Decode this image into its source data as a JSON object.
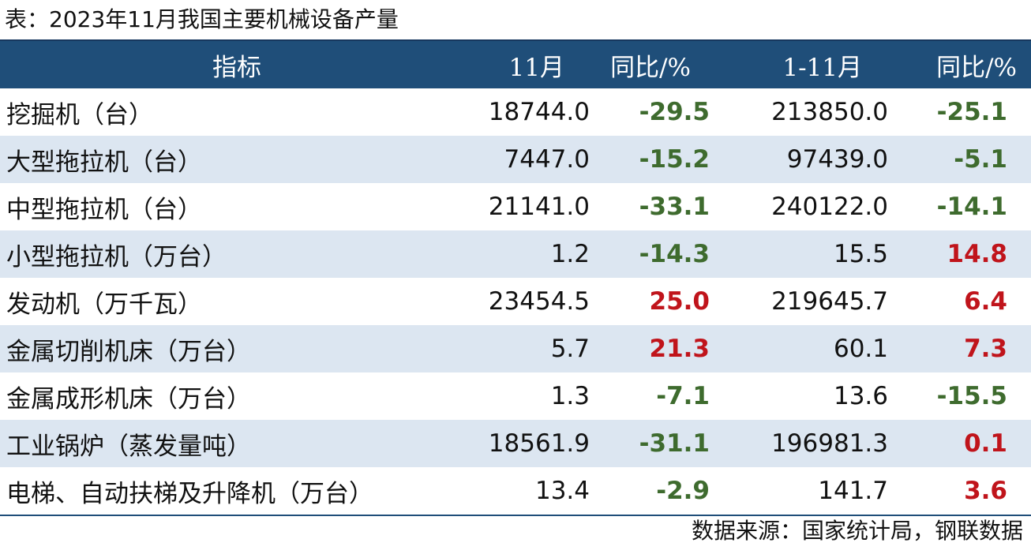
{
  "caption": "表：2023年11月我国主要机械设备产量",
  "headers": {
    "indicator": "指标",
    "nov": "11月",
    "yoy_nov": "同比/%",
    "jan_nov": "1-11月",
    "yoy_jan_nov": "同比/%"
  },
  "rows": [
    {
      "name": "挖掘机（台）",
      "nov": "18744.0",
      "yoy_nov": "-29.5",
      "jan_nov": "213850.0",
      "yoy_jan_nov": "-25.1"
    },
    {
      "name": "大型拖拉机（台）",
      "nov": "7447.0",
      "yoy_nov": "-15.2",
      "jan_nov": "97439.0",
      "yoy_jan_nov": "-5.1"
    },
    {
      "name": "中型拖拉机（台）",
      "nov": "21141.0",
      "yoy_nov": "-33.1",
      "jan_nov": "240122.0",
      "yoy_jan_nov": "-14.1"
    },
    {
      "name": "小型拖拉机（万台）",
      "nov": "1.2",
      "yoy_nov": "-14.3",
      "jan_nov": "15.5",
      "yoy_jan_nov": "14.8"
    },
    {
      "name": "发动机（万千瓦）",
      "nov": "23454.5",
      "yoy_nov": "25.0",
      "jan_nov": "219645.7",
      "yoy_jan_nov": "6.4"
    },
    {
      "name": "金属切削机床（万台）",
      "nov": "5.7",
      "yoy_nov": "21.3",
      "jan_nov": "60.1",
      "yoy_jan_nov": "7.3"
    },
    {
      "name": "金属成形机床（万台）",
      "nov": "1.3",
      "yoy_nov": "-7.1",
      "jan_nov": "13.6",
      "yoy_jan_nov": "-15.5"
    },
    {
      "name": "工业锅炉（蒸发量吨）",
      "nov": "18561.9",
      "yoy_nov": "-31.1",
      "jan_nov": "196981.3",
      "yoy_jan_nov": "0.1"
    },
    {
      "name": "电梯、自动扶梯及升降机（万台）",
      "nov": "13.4",
      "yoy_nov": "-2.9",
      "jan_nov": "141.7",
      "yoy_jan_nov": "3.6"
    }
  ],
  "colors": {
    "header_bg": "#1f4e79",
    "alt_row_bg": "#dce6f1",
    "negative": "#3e6b2e",
    "positive": "#c0141b"
  },
  "source": "数据来源：国家统计局，钢联数据"
}
